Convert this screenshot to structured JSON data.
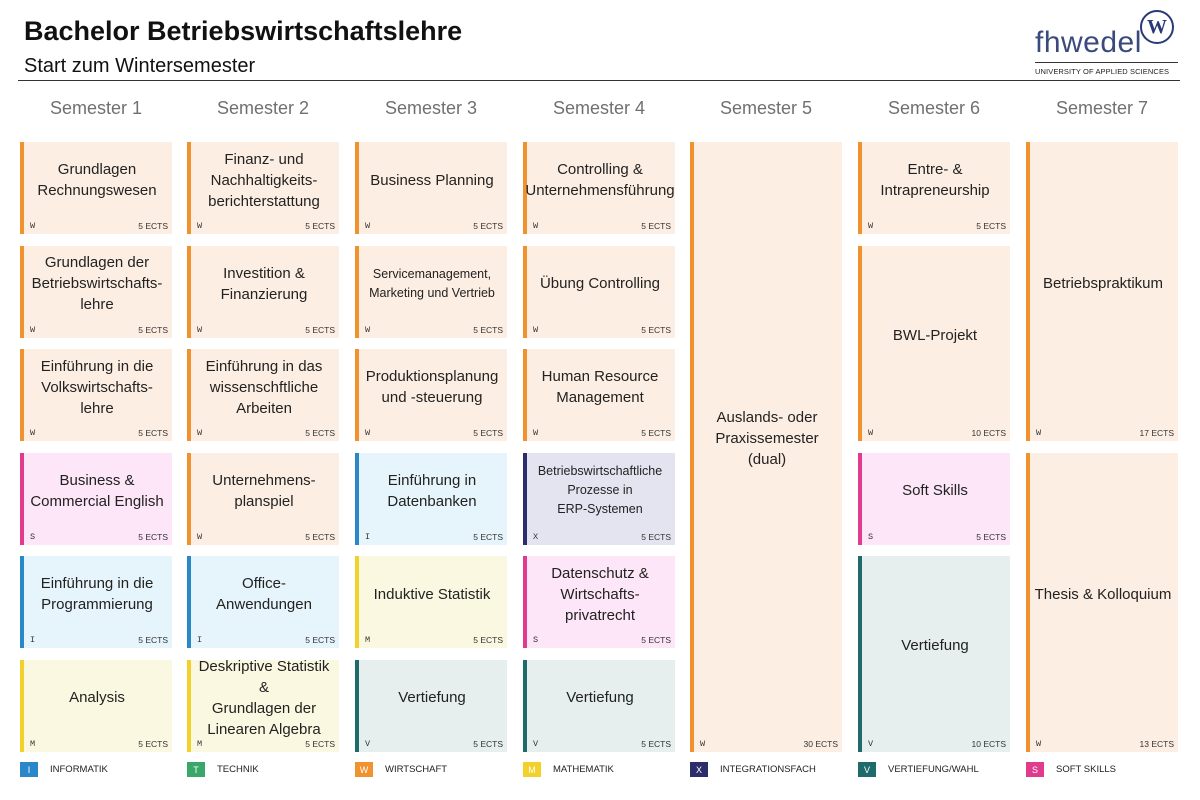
{
  "header": {
    "title": "Bachelor Betriebswirtschaftslehre",
    "subtitle": "Start zum Wintersemester"
  },
  "logo": {
    "text": "fhwedel",
    "badge": "W",
    "subtitle": "UNIVERSITY OF APPLIED SCIENCES"
  },
  "semesters": [
    "Semester 1",
    "Semester 2",
    "Semester 3",
    "Semester 4",
    "Semester 5",
    "Semester 6",
    "Semester 7"
  ],
  "modules": [
    {
      "sem": 1,
      "row": 1,
      "span": 1,
      "cat": "W",
      "name": "Grundlagen\nRechnungswesen",
      "ects": "5 ECTS"
    },
    {
      "sem": 1,
      "row": 2,
      "span": 1,
      "cat": "W",
      "name": "Grundlagen der\nBetriebswirtschafts-\nlehre",
      "ects": "5 ECTS"
    },
    {
      "sem": 1,
      "row": 3,
      "span": 1,
      "cat": "W",
      "name": "Einführung in die\nVolkswirtschafts-\nlehre",
      "ects": "5 ECTS"
    },
    {
      "sem": 1,
      "row": 4,
      "span": 1,
      "cat": "S",
      "name": "Business &\nCommercial English",
      "ects": "5 ECTS"
    },
    {
      "sem": 1,
      "row": 5,
      "span": 1,
      "cat": "I",
      "name": "Einführung in die\nProgrammierung",
      "ects": "5 ECTS"
    },
    {
      "sem": 1,
      "row": 6,
      "span": 1,
      "cat": "M",
      "name": "Analysis",
      "ects": "5 ECTS"
    },
    {
      "sem": 2,
      "row": 1,
      "span": 1,
      "cat": "W",
      "name": "Finanz- und\nNachhaltigkeits-\nberichterstattung",
      "ects": "5 ECTS"
    },
    {
      "sem": 2,
      "row": 2,
      "span": 1,
      "cat": "W",
      "name": "Investition &\nFinanzierung",
      "ects": "5 ECTS"
    },
    {
      "sem": 2,
      "row": 3,
      "span": 1,
      "cat": "W",
      "name": "Einführung in das\nwissenschftliche\nArbeiten",
      "ects": "5 ECTS"
    },
    {
      "sem": 2,
      "row": 4,
      "span": 1,
      "cat": "W",
      "name": "Unternehmens-\nplanspiel",
      "ects": "5 ECTS"
    },
    {
      "sem": 2,
      "row": 5,
      "span": 1,
      "cat": "I",
      "name": "Office-Anwendungen",
      "ects": "5 ECTS"
    },
    {
      "sem": 2,
      "row": 6,
      "span": 1,
      "cat": "M",
      "name": "Deskriptive Statistik &\nGrundlagen der\nLinearen Algebra",
      "ects": "5 ECTS"
    },
    {
      "sem": 3,
      "row": 1,
      "span": 1,
      "cat": "W",
      "name": "Business Planning",
      "ects": "5 ECTS"
    },
    {
      "sem": 3,
      "row": 2,
      "span": 1,
      "cat": "W",
      "name": "Servicemanagement,\nMarketing und Vertrieb",
      "ects": "5 ECTS",
      "small": true
    },
    {
      "sem": 3,
      "row": 3,
      "span": 1,
      "cat": "W",
      "name": "Produktionsplanung\nund -steuerung",
      "ects": "5 ECTS"
    },
    {
      "sem": 3,
      "row": 4,
      "span": 1,
      "cat": "I",
      "name": "Einführung in\nDatenbanken",
      "ects": "5 ECTS"
    },
    {
      "sem": 3,
      "row": 5,
      "span": 1,
      "cat": "M",
      "name": "Induktive Statistik",
      "ects": "5 ECTS"
    },
    {
      "sem": 3,
      "row": 6,
      "span": 1,
      "cat": "V",
      "name": "Vertiefung",
      "ects": "5 ECTS"
    },
    {
      "sem": 4,
      "row": 1,
      "span": 1,
      "cat": "W",
      "name": "Controlling &\nUnternehmensführung",
      "ects": "5 ECTS"
    },
    {
      "sem": 4,
      "row": 2,
      "span": 1,
      "cat": "W",
      "name": "Übung Controlling",
      "ects": "5 ECTS"
    },
    {
      "sem": 4,
      "row": 3,
      "span": 1,
      "cat": "W",
      "name": "Human Resource\nManagement",
      "ects": "5 ECTS"
    },
    {
      "sem": 4,
      "row": 4,
      "span": 1,
      "cat": "X",
      "name": "Betriebswirtschaftliche\nProzesse in\nERP-Systemen",
      "ects": "5 ECTS",
      "small": true
    },
    {
      "sem": 4,
      "row": 5,
      "span": 1,
      "cat": "S",
      "name": "Datenschutz &\nWirtschafts-\nprivatrecht",
      "ects": "5 ECTS"
    },
    {
      "sem": 4,
      "row": 6,
      "span": 1,
      "cat": "V",
      "name": "Vertiefung",
      "ects": "5 ECTS"
    },
    {
      "sem": 5,
      "row": 1,
      "span": 6,
      "cat": "W",
      "name": "Auslands- oder\nPraxissemester (dual)",
      "ects": "30 ECTS"
    },
    {
      "sem": 6,
      "row": 1,
      "span": 1,
      "cat": "W",
      "name": "Entre- &\nIntrapreneurship",
      "ects": "5 ECTS"
    },
    {
      "sem": 6,
      "row": 2,
      "span": 2,
      "cat": "W",
      "name": "BWL-Projekt",
      "ects": "10 ECTS"
    },
    {
      "sem": 6,
      "row": 4,
      "span": 1,
      "cat": "S",
      "name": "Soft Skills",
      "ects": "5 ECTS"
    },
    {
      "sem": 6,
      "row": 5,
      "span": 2,
      "cat": "V",
      "name": "Vertiefung",
      "ects": "10 ECTS"
    },
    {
      "sem": 7,
      "row": 1,
      "span": 3,
      "cat": "W",
      "name": "Betriebspraktikum",
      "ects": "17 ECTS"
    },
    {
      "sem": 7,
      "row": 4,
      "span": 3,
      "cat": "W",
      "name": "Thesis & Kolloquium",
      "ects": "13 ECTS"
    }
  ],
  "legend": [
    {
      "code": "I",
      "label": "INFORMATIK",
      "color": "#2a88c8"
    },
    {
      "code": "T",
      "label": "TECHNIK",
      "color": "#3aa66a"
    },
    {
      "code": "W",
      "label": "WIRTSCHAFT",
      "color": "#f0922e"
    },
    {
      "code": "M",
      "label": "MATHEMATIK",
      "color": "#f2d12a"
    },
    {
      "code": "X",
      "label": "INTEGRATIONSFACH",
      "color": "#2d2d6b"
    },
    {
      "code": "V",
      "label": "VERTIEFUNG/WAHL",
      "color": "#1f6b6b"
    },
    {
      "code": "S",
      "label": "SOFT SKILLS",
      "color": "#e03b8c"
    }
  ]
}
